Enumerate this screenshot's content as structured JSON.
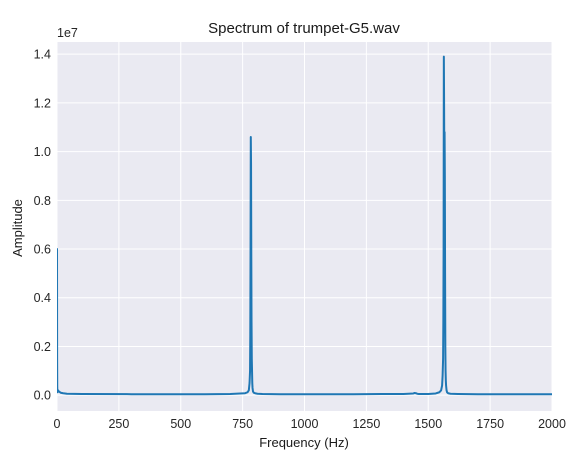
{
  "chart_data": {
    "type": "line",
    "title": "Spectrum of trumpet-G5.wav",
    "xlabel": "Frequency (Hz)",
    "ylabel": "Amplitude",
    "y_offset_label": "1e7",
    "xlim": [
      0,
      2000
    ],
    "ylim": [
      -0.065,
      1.45
    ],
    "y_scale_factor": 10000000,
    "x_ticks": [
      0,
      250,
      500,
      750,
      1000,
      1250,
      1500,
      1750,
      2000
    ],
    "x_tick_labels": [
      "0",
      "250",
      "500",
      "750",
      "1000",
      "1250",
      "1500",
      "1750",
      "2000"
    ],
    "y_ticks": [
      0.0,
      0.2,
      0.4,
      0.6,
      0.8,
      1.0,
      1.2,
      1.4
    ],
    "y_tick_labels": [
      "0.0",
      "0.2",
      "0.4",
      "0.6",
      "0.8",
      "1.0",
      "1.2",
      "1.4"
    ],
    "grid": true,
    "series": [
      {
        "color": "#1f77b4",
        "x": [
          0,
          0.5,
          1,
          2,
          4,
          8,
          15,
          25,
          40,
          100,
          300,
          600,
          700,
          760,
          770,
          775,
          778,
          780,
          781,
          782,
          783,
          784,
          785,
          786,
          787,
          788,
          789,
          790,
          792,
          795,
          800,
          810,
          830,
          900,
          1000,
          1200,
          1400,
          1440,
          1445,
          1450,
          1455,
          1460,
          1500,
          1530,
          1545,
          1552,
          1556,
          1558,
          1560,
          1561,
          1562,
          1563,
          1564,
          1565,
          1566,
          1567,
          1568,
          1569,
          1570,
          1571,
          1572,
          1574,
          1576,
          1580,
          1590,
          1620,
          1700,
          1800,
          2000
        ],
        "values": [
          0.6,
          0.15,
          0.03,
          0.012,
          0.02,
          0.015,
          0.01,
          0.008,
          0.006,
          0.005,
          0.004,
          0.004,
          0.005,
          0.008,
          0.012,
          0.02,
          0.05,
          0.1,
          0.25,
          0.6,
          1.06,
          0.95,
          0.58,
          0.3,
          0.15,
          0.1,
          0.05,
          0.03,
          0.015,
          0.01,
          0.008,
          0.006,
          0.005,
          0.004,
          0.004,
          0.004,
          0.005,
          0.007,
          0.009,
          0.008,
          0.006,
          0.005,
          0.005,
          0.007,
          0.012,
          0.02,
          0.04,
          0.08,
          0.15,
          0.3,
          0.6,
          1.39,
          1.2,
          0.95,
          1.08,
          0.9,
          0.5,
          0.2,
          0.1,
          0.06,
          0.04,
          0.02,
          0.012,
          0.008,
          0.006,
          0.005,
          0.004,
          0.004,
          0.004
        ]
      }
    ]
  }
}
